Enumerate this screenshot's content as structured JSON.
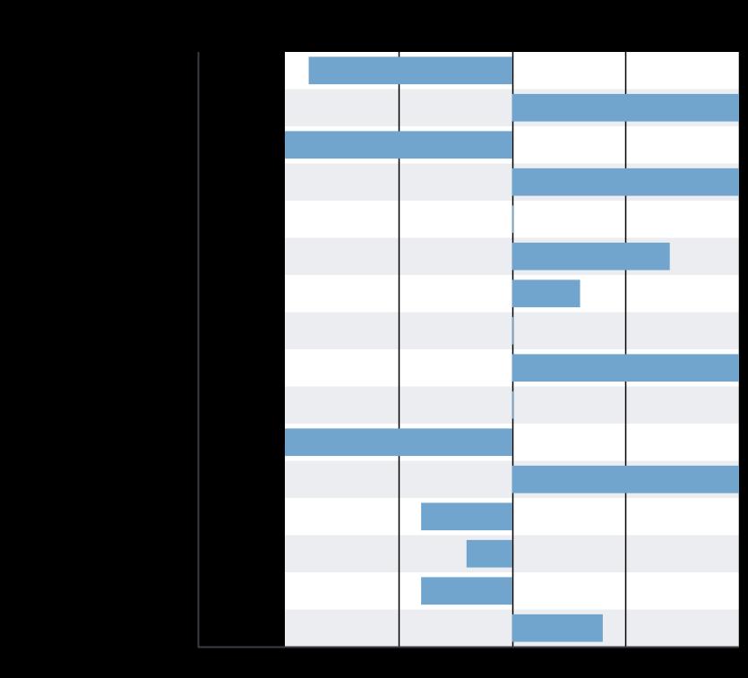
{
  "chart_data": {
    "type": "bar",
    "orientation": "horizontal",
    "categories": [
      null,
      null,
      null,
      null,
      null,
      null,
      null,
      null,
      null,
      null,
      null,
      null,
      null,
      null,
      null,
      null
    ],
    "values": [
      -1.79,
      2.0,
      -2.0,
      2.0,
      0,
      1.39,
      0.6,
      0,
      2.0,
      0,
      -2.0,
      2.0,
      -0.8,
      -0.4,
      -0.8,
      0.8
    ],
    "color": "#71a5cd",
    "xlim": [
      -2,
      2
    ],
    "xticks": [
      -1,
      0,
      1,
      2
    ],
    "grid": true
  }
}
